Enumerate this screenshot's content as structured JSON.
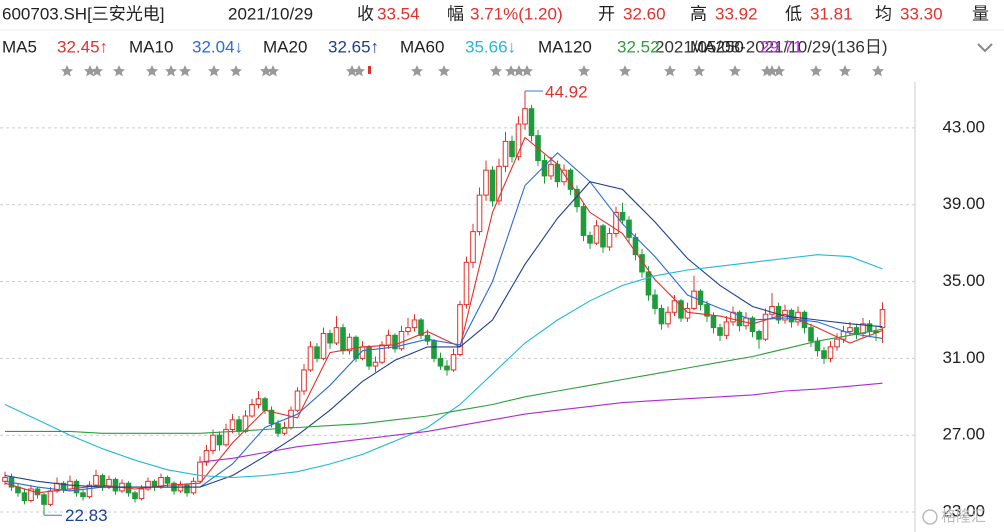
{
  "chart_data": {
    "type": "candlestick",
    "title": "600703.SH[三安光电]",
    "date": "2021/10/29",
    "quote": [
      {
        "label": "收",
        "value": "33.54"
      },
      {
        "label": "幅",
        "value": "3.71%(1.20)"
      },
      {
        "label": "开",
        "value": "32.60"
      },
      {
        "label": "高",
        "value": "33.92"
      },
      {
        "label": "低",
        "value": "31.81"
      },
      {
        "label": "均",
        "value": "33.30"
      }
    ],
    "volume_label": "量",
    "range_label": "2021/05/08-2021/10/29(136日)",
    "up_color": "#e0312b",
    "down_color": "#1e9b3a",
    "candles": [
      [
        24.6,
        25.1,
        24.4,
        24.8
      ],
      [
        24.8,
        25.0,
        24.1,
        24.3
      ],
      [
        24.3,
        24.5,
        23.8,
        24.0
      ],
      [
        24.0,
        24.2,
        23.4,
        23.6
      ],
      [
        23.6,
        24.4,
        23.5,
        24.2
      ],
      [
        24.2,
        24.3,
        23.7,
        23.9
      ],
      [
        23.9,
        24.0,
        22.83,
        23.4
      ],
      [
        23.4,
        24.3,
        23.3,
        24.1
      ],
      [
        24.1,
        24.8,
        24.0,
        24.5
      ],
      [
        24.5,
        24.6,
        24.0,
        24.2
      ],
      [
        24.2,
        24.9,
        24.1,
        24.6
      ],
      [
        24.6,
        24.7,
        23.8,
        24.0
      ],
      [
        24.0,
        24.2,
        23.6,
        23.8
      ],
      [
        23.8,
        24.6,
        23.7,
        24.4
      ],
      [
        24.4,
        25.2,
        24.3,
        24.9
      ],
      [
        24.9,
        25.0,
        24.1,
        24.3
      ],
      [
        24.3,
        24.9,
        24.2,
        24.7
      ],
      [
        24.7,
        24.8,
        23.9,
        24.1
      ],
      [
        24.1,
        24.7,
        24.0,
        24.5
      ],
      [
        24.5,
        24.6,
        23.8,
        24.0
      ],
      [
        24.0,
        24.1,
        23.5,
        23.7
      ],
      [
        23.7,
        24.4,
        23.6,
        24.2
      ],
      [
        24.2,
        24.8,
        24.1,
        24.6
      ],
      [
        24.6,
        24.7,
        24.1,
        24.3
      ],
      [
        24.3,
        25.0,
        24.2,
        24.8
      ],
      [
        24.8,
        24.9,
        24.3,
        24.5
      ],
      [
        24.5,
        24.6,
        23.9,
        24.1
      ],
      [
        24.1,
        24.6,
        24.0,
        24.4
      ],
      [
        24.4,
        24.5,
        23.8,
        24.0
      ],
      [
        24.0,
        24.8,
        23.9,
        24.6
      ],
      [
        24.6,
        25.9,
        24.5,
        25.6
      ],
      [
        25.6,
        26.5,
        25.4,
        26.2
      ],
      [
        26.2,
        27.3,
        26.0,
        27.0
      ],
      [
        27.0,
        27.2,
        26.2,
        26.5
      ],
      [
        26.5,
        27.6,
        26.4,
        27.3
      ],
      [
        27.3,
        28.1,
        27.1,
        27.8
      ],
      [
        27.8,
        28.0,
        27.0,
        27.2
      ],
      [
        27.2,
        28.3,
        27.1,
        28.0
      ],
      [
        28.0,
        28.9,
        27.9,
        28.6
      ],
      [
        28.6,
        29.3,
        28.4,
        28.9
      ],
      [
        28.9,
        29.0,
        28.1,
        28.3
      ],
      [
        28.3,
        28.5,
        27.4,
        27.6
      ],
      [
        27.6,
        27.8,
        26.9,
        27.1
      ],
      [
        27.1,
        27.7,
        27.0,
        27.4
      ],
      [
        27.4,
        28.5,
        27.3,
        28.3
      ],
      [
        28.3,
        29.5,
        28.2,
        29.3
      ],
      [
        29.3,
        30.7,
        29.1,
        30.4
      ],
      [
        30.4,
        31.9,
        30.3,
        31.6
      ],
      [
        31.6,
        31.8,
        30.8,
        31.0
      ],
      [
        31.0,
        32.6,
        30.9,
        32.3
      ],
      [
        32.3,
        32.5,
        31.5,
        31.8
      ],
      [
        31.8,
        33.2,
        31.7,
        32.6
      ],
      [
        32.6,
        32.8,
        31.2,
        31.4
      ],
      [
        31.4,
        32.3,
        31.2,
        32.1
      ],
      [
        32.1,
        32.2,
        30.8,
        31.0
      ],
      [
        31.0,
        31.9,
        30.9,
        31.6
      ],
      [
        31.6,
        31.7,
        30.4,
        30.6
      ],
      [
        30.6,
        31.1,
        30.3,
        30.8
      ],
      [
        30.8,
        31.9,
        30.7,
        31.7
      ],
      [
        31.7,
        32.5,
        31.5,
        32.2
      ],
      [
        32.2,
        32.3,
        31.3,
        31.5
      ],
      [
        31.5,
        32.7,
        31.4,
        32.4
      ],
      [
        32.4,
        33.1,
        32.2,
        32.6
      ],
      [
        32.6,
        33.3,
        32.4,
        33.0
      ],
      [
        33.0,
        33.1,
        32.0,
        32.2
      ],
      [
        32.2,
        32.5,
        31.7,
        31.9
      ],
      [
        31.9,
        32.0,
        30.8,
        31.0
      ],
      [
        31.0,
        31.3,
        30.4,
        30.6
      ],
      [
        30.6,
        30.9,
        30.1,
        30.4
      ],
      [
        30.4,
        31.5,
        30.3,
        31.2
      ],
      [
        31.2,
        34.0,
        31.1,
        33.8
      ],
      [
        33.8,
        36.3,
        33.6,
        36.0
      ],
      [
        36.0,
        38.0,
        35.7,
        37.6
      ],
      [
        37.6,
        39.9,
        37.4,
        39.5
      ],
      [
        39.5,
        41.3,
        39.2,
        40.8
      ],
      [
        40.8,
        41.0,
        38.9,
        39.2
      ],
      [
        39.2,
        41.4,
        39.0,
        41.0
      ],
      [
        41.0,
        42.8,
        40.7,
        42.3
      ],
      [
        42.3,
        42.6,
        41.2,
        41.5
      ],
      [
        41.5,
        43.6,
        41.3,
        43.2
      ],
      [
        43.2,
        44.92,
        42.9,
        44.0
      ],
      [
        44.0,
        44.2,
        42.3,
        42.6
      ],
      [
        42.6,
        42.9,
        41.0,
        41.3
      ],
      [
        41.3,
        41.6,
        40.1,
        40.5
      ],
      [
        40.5,
        41.5,
        40.3,
        41.1
      ],
      [
        41.1,
        41.3,
        39.9,
        40.2
      ],
      [
        40.2,
        41.1,
        40.0,
        40.8
      ],
      [
        40.8,
        40.9,
        39.5,
        39.8
      ],
      [
        39.8,
        40.0,
        38.6,
        38.9
      ],
      [
        38.9,
        39.1,
        37.1,
        37.4
      ],
      [
        37.4,
        37.6,
        36.7,
        37.0
      ],
      [
        37.0,
        38.2,
        36.9,
        37.9
      ],
      [
        37.9,
        38.0,
        36.5,
        36.8
      ],
      [
        36.8,
        37.8,
        36.6,
        37.5
      ],
      [
        37.5,
        38.9,
        37.3,
        38.6
      ],
      [
        38.6,
        39.1,
        38.0,
        38.2
      ],
      [
        38.2,
        38.4,
        37.0,
        37.3
      ],
      [
        37.3,
        37.5,
        36.1,
        36.4
      ],
      [
        36.4,
        36.7,
        35.2,
        35.5
      ],
      [
        35.5,
        35.8,
        34.0,
        34.3
      ],
      [
        34.3,
        34.6,
        33.3,
        33.6
      ],
      [
        33.6,
        33.8,
        32.5,
        32.8
      ],
      [
        32.8,
        33.7,
        32.6,
        33.4
      ],
      [
        33.4,
        34.3,
        33.2,
        34.0
      ],
      [
        34.0,
        34.1,
        32.9,
        33.1
      ],
      [
        33.1,
        33.9,
        32.9,
        33.6
      ],
      [
        33.6,
        35.3,
        33.5,
        34.5
      ],
      [
        34.5,
        34.6,
        33.5,
        33.8
      ],
      [
        33.8,
        34.0,
        32.9,
        33.2
      ],
      [
        33.2,
        33.4,
        32.3,
        32.6
      ],
      [
        32.6,
        32.8,
        31.9,
        32.2
      ],
      [
        32.2,
        33.2,
        32.0,
        32.9
      ],
      [
        32.9,
        33.7,
        32.7,
        33.4
      ],
      [
        33.4,
        33.5,
        32.4,
        32.7
      ],
      [
        32.7,
        33.4,
        32.5,
        33.1
      ],
      [
        33.1,
        33.2,
        32.1,
        32.4
      ],
      [
        32.4,
        32.5,
        31.5,
        32.0
      ],
      [
        32.0,
        33.6,
        31.9,
        33.3
      ],
      [
        33.3,
        34.4,
        33.1,
        33.7
      ],
      [
        33.7,
        33.9,
        32.8,
        33.0
      ],
      [
        33.0,
        33.8,
        32.8,
        33.5
      ],
      [
        33.5,
        33.6,
        32.6,
        32.9
      ],
      [
        32.9,
        33.7,
        32.7,
        33.4
      ],
      [
        33.4,
        33.5,
        32.3,
        32.6
      ],
      [
        32.6,
        32.8,
        31.6,
        31.9
      ],
      [
        31.9,
        32.1,
        31.1,
        31.4
      ],
      [
        31.4,
        31.6,
        30.7,
        31.0
      ],
      [
        31.0,
        31.9,
        30.8,
        31.6
      ],
      [
        31.6,
        32.3,
        31.4,
        32.0
      ],
      [
        32.0,
        32.7,
        31.8,
        32.4
      ],
      [
        32.4,
        32.9,
        32.2,
        32.6
      ],
      [
        32.6,
        32.8,
        32.0,
        32.3
      ],
      [
        32.3,
        33.1,
        32.1,
        32.8
      ],
      [
        32.8,
        33.0,
        32.1,
        32.4
      ],
      [
        32.4,
        32.7,
        31.9,
        32.34
      ],
      [
        32.6,
        33.92,
        31.81,
        33.54
      ]
    ],
    "ma_x": [
      0,
      5,
      10,
      15,
      20,
      25,
      30,
      35,
      40,
      45,
      50,
      55,
      60,
      65,
      70,
      75,
      80,
      85,
      90,
      95,
      100,
      105,
      110,
      115,
      120,
      125,
      130,
      135
    ],
    "series": [
      {
        "name": "MA5",
        "color": "#e0312b",
        "last_label": "32.45↑",
        "values": [
          24.5,
          24.0,
          24.2,
          24.4,
          24.2,
          24.4,
          24.5,
          26.6,
          28.3,
          27.9,
          31.3,
          31.6,
          31.7,
          32.4,
          31.6,
          38.6,
          42.5,
          41.1,
          38.6,
          37.5,
          35.1,
          33.4,
          33.2,
          32.8,
          33.3,
          32.6,
          31.8,
          32.45
        ]
      },
      {
        "name": "MA10",
        "color": "#2a6bd6",
        "last_label": "32.04↓",
        "values": [
          24.6,
          24.3,
          24.1,
          24.3,
          24.3,
          24.3,
          24.3,
          25.5,
          27.4,
          28.1,
          29.6,
          31.4,
          31.6,
          32.0,
          31.7,
          35.0,
          40.0,
          41.7,
          40.2,
          38.0,
          36.3,
          34.3,
          33.6,
          33.0,
          33.1,
          32.9,
          32.3,
          32.04
        ]
      },
      {
        "name": "MA20",
        "color": "#1c3f8f",
        "last_label": "32.65↑",
        "values": [
          24.9,
          24.6,
          24.4,
          24.3,
          24.3,
          24.3,
          24.3,
          24.9,
          25.9,
          27.0,
          28.3,
          29.8,
          30.9,
          31.6,
          31.6,
          33.0,
          35.9,
          38.3,
          40.2,
          39.8,
          38.1,
          36.2,
          34.8,
          33.7,
          33.2,
          33.0,
          32.8,
          32.65
        ]
      },
      {
        "name": "MA60",
        "color": "#22b8d8",
        "last_label": "35.66↓",
        "values": [
          28.6,
          27.8,
          27.0,
          26.3,
          25.7,
          25.2,
          24.9,
          24.8,
          24.9,
          25.1,
          25.5,
          26.0,
          26.7,
          27.4,
          28.6,
          30.2,
          31.8,
          33.0,
          34.0,
          34.8,
          35.3,
          35.6,
          35.8,
          36.0,
          36.2,
          36.4,
          36.3,
          35.66
        ]
      },
      {
        "name": "MA120",
        "color": "#2f9e3c",
        "last_label": "32.52",
        "values": [
          27.2,
          27.2,
          27.2,
          27.1,
          27.1,
          27.1,
          27.1,
          27.2,
          27.3,
          27.4,
          27.5,
          27.6,
          27.8,
          28.0,
          28.3,
          28.6,
          29.0,
          29.3,
          29.6,
          29.9,
          30.2,
          30.5,
          30.8,
          31.1,
          31.5,
          31.9,
          32.2,
          32.52
        ]
      },
      {
        "name": "MA250",
        "color": "#b02ad0",
        "last_label": "29.71",
        "values": [
          null,
          null,
          null,
          null,
          null,
          null,
          25.6,
          25.8,
          26.1,
          26.4,
          26.6,
          26.8,
          27.0,
          27.2,
          27.5,
          27.8,
          28.1,
          28.3,
          28.5,
          28.7,
          28.8,
          28.9,
          29.0,
          29.1,
          29.3,
          29.4,
          29.55,
          29.71
        ]
      }
    ],
    "high_label": 44.92,
    "low_label": 22.83,
    "ylim": [
      22,
      45.4
    ],
    "yticks": [
      {
        "value": 23,
        "label": "23.00"
      },
      {
        "value": 27,
        "label": "27.00"
      },
      {
        "value": 31,
        "label": "31.00"
      },
      {
        "value": 35,
        "label": "35.00"
      },
      {
        "value": 39,
        "label": "39.00"
      },
      {
        "value": 43,
        "label": "43.00"
      }
    ],
    "grid": true,
    "watermark": "格隆汇"
  }
}
